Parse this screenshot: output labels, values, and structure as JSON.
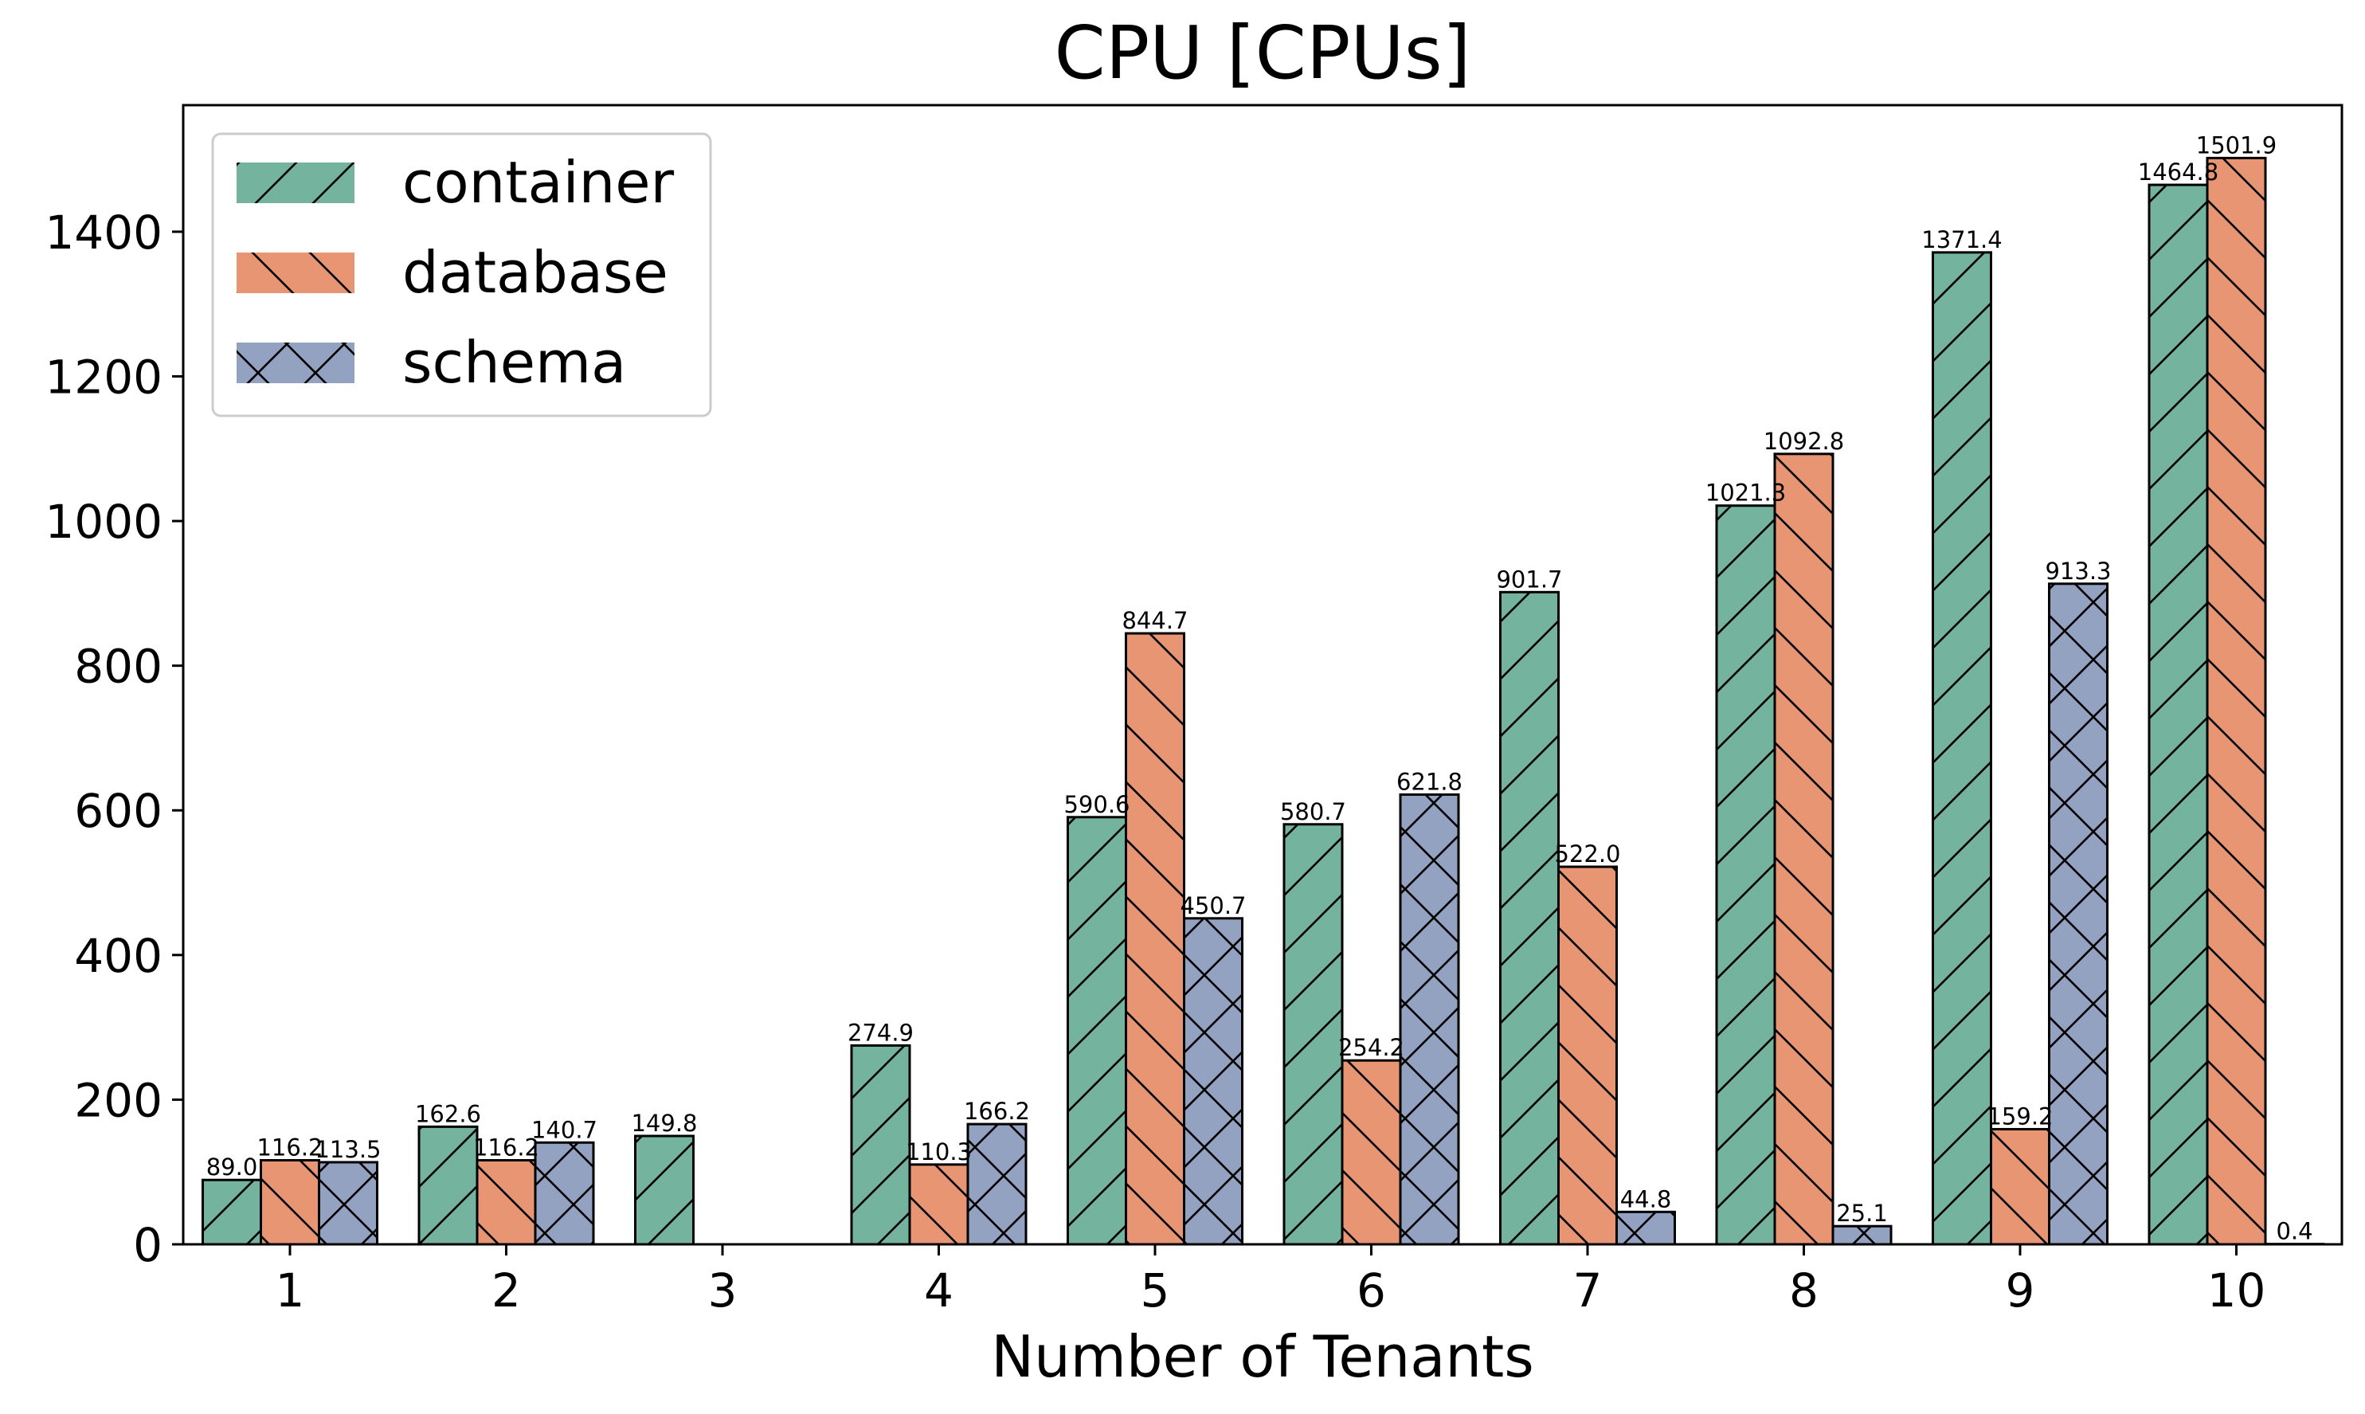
{
  "chart_data": {
    "type": "bar",
    "title": "CPU [CPUs]",
    "xlabel": "Number of Tenants",
    "ylabel": "",
    "categories": [
      "1",
      "2",
      "3",
      "4",
      "5",
      "6",
      "7",
      "8",
      "9",
      "10"
    ],
    "ylim": [
      0,
      1575
    ],
    "yticks": [
      "0",
      "200",
      "400",
      "600",
      "800",
      "1000",
      "1200",
      "1400"
    ],
    "legend_position": "top-left",
    "grid": false,
    "series": [
      {
        "name": "container",
        "color": "#74b49e",
        "hatch": "diagonal",
        "values": [
          89.0,
          162.6,
          149.8,
          274.9,
          590.6,
          580.7,
          901.7,
          1021.3,
          1371.4,
          1464.8
        ],
        "labels": [
          "89.0",
          "162.6",
          "149.8",
          "274.9",
          "590.6",
          "580.7",
          "901.7",
          "1021.3",
          "1371.4",
          "1464.8"
        ]
      },
      {
        "name": "database",
        "color": "#e89574",
        "hatch": "backdiagonal",
        "values": [
          116.2,
          116.2,
          0,
          110.3,
          844.7,
          254.2,
          522.0,
          1092.8,
          159.2,
          1501.9
        ],
        "labels": [
          "116.2",
          "116.2",
          "",
          "110.3",
          "844.7",
          "254.2",
          "522.0",
          "1092.8",
          "159.2",
          "1501.9"
        ]
      },
      {
        "name": "schema",
        "color": "#94a2c2",
        "hatch": "cross",
        "values": [
          113.5,
          140.7,
          0,
          166.2,
          450.7,
          621.8,
          44.8,
          25.1,
          913.3,
          0.4
        ],
        "labels": [
          "113.5",
          "140.7",
          "",
          "166.2",
          "450.7",
          "621.8",
          "44.8",
          "25.1",
          "913.3",
          "0.4"
        ]
      }
    ]
  }
}
